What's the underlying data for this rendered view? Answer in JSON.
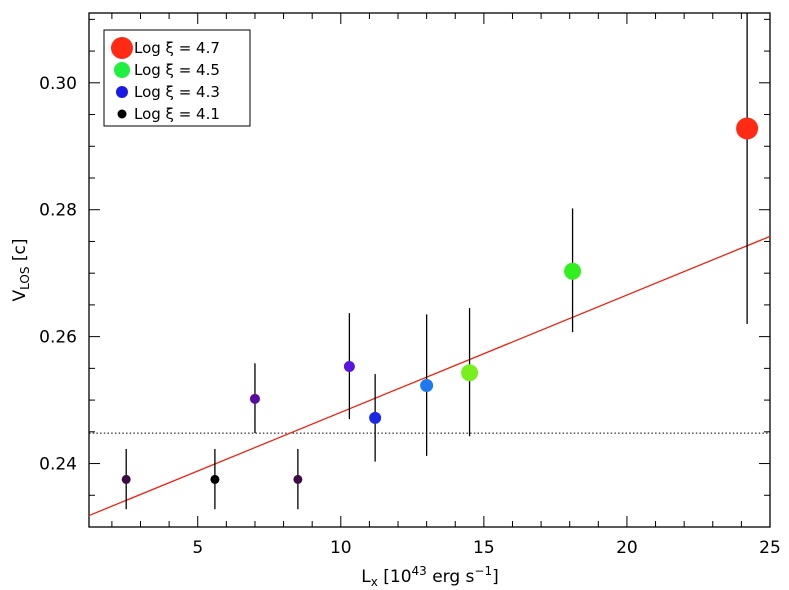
{
  "chart_data": {
    "type": "scatter",
    "xlabel": {
      "main": "L",
      "sub": "x",
      "open": " [10",
      "sup": "43",
      "unit": " erg s",
      "unitSup": "−1",
      "close": "]"
    },
    "ylabel": {
      "main": "V",
      "sub": "LOS",
      "rest": " [c]"
    },
    "xlim": [
      1.2,
      25
    ],
    "ylim": [
      0.23,
      0.311
    ],
    "xticks": [
      5,
      10,
      15,
      20,
      25
    ],
    "yticks": [
      0.24,
      0.26,
      0.28,
      0.3
    ],
    "xtick_labels": [
      "5",
      "10",
      "15",
      "20",
      "25"
    ],
    "ytick_labels": [
      "0.24",
      "0.26",
      "0.28",
      "0.30"
    ],
    "points": [
      {
        "x": 2.5,
        "y": 0.2375,
        "err": [
          0.2328,
          0.2423
        ],
        "color": "#3d0a45",
        "size": 4.5
      },
      {
        "x": 5.6,
        "y": 0.2375,
        "err": [
          0.2328,
          0.2423
        ],
        "color": "#000000",
        "size": 4.5
      },
      {
        "x": 7.0,
        "y": 0.2502,
        "err": [
          0.2448,
          0.2558
        ],
        "color": "#5a0aa0",
        "size": 5
      },
      {
        "x": 8.5,
        "y": 0.2375,
        "err": [
          0.2328,
          0.2423
        ],
        "color": "#3d0a45",
        "size": 4.5
      },
      {
        "x": 10.3,
        "y": 0.2553,
        "err": [
          0.247,
          0.2637
        ],
        "color": "#5a14e0",
        "size": 5.5
      },
      {
        "x": 11.2,
        "y": 0.2472,
        "err": [
          0.2403,
          0.2541
        ],
        "color": "#1a28e6",
        "size": 6
      },
      {
        "x": 13.0,
        "y": 0.2523,
        "err": [
          0.2412,
          0.2635
        ],
        "color": "#1e78f0",
        "size": 6.5
      },
      {
        "x": 14.5,
        "y": 0.2543,
        "err": [
          0.2443,
          0.2645
        ],
        "color": "#78f01e",
        "size": 8.5
      },
      {
        "x": 18.1,
        "y": 0.2703,
        "err": [
          0.2607,
          0.2802
        ],
        "color": "#32f01e",
        "size": 8.5
      },
      {
        "x": 24.2,
        "y": 0.2928,
        "err": [
          0.262,
          0.311
        ],
        "color": "#ff2a14",
        "size": 11
      }
    ],
    "fit_line": {
      "x": [
        1.2,
        25
      ],
      "y": [
        0.2318,
        0.2758
      ],
      "color": "#ee2211"
    },
    "reference_line": {
      "y": 0.2448,
      "style": "dotted"
    },
    "legend": {
      "position": "top-left",
      "entries": [
        {
          "label": "Log ξ = 4.7",
          "color": "#ff2a14",
          "size": 11
        },
        {
          "label": "Log ξ = 4.5",
          "color": "#22f040",
          "size": 8
        },
        {
          "label": "Log ξ = 4.3",
          "color": "#1a1ae6",
          "size": 6
        },
        {
          "label": "Log ξ = 4.1",
          "color": "#000000",
          "size": 4.5
        }
      ]
    }
  }
}
